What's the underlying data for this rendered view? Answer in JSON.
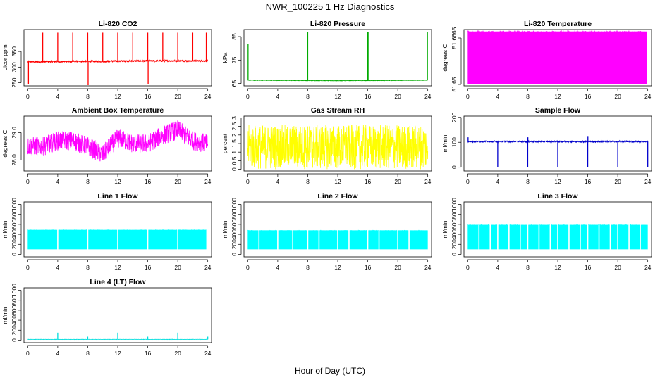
{
  "figure": {
    "title": "NWR_100225  1 Hz Diagnostics",
    "xlabel": "Hour of Day (UTC)"
  },
  "chart_data": [
    {
      "id": "co2",
      "type": "line",
      "title": "Li-820 CO2",
      "ylabel": "Licor ppm",
      "color": "#ff0000",
      "xlim": [
        -0.5,
        24.5
      ],
      "ylim": [
        240,
        420
      ],
      "xticks": [
        0,
        4,
        8,
        12,
        16,
        20,
        24
      ],
      "yticks": [
        250,
        300,
        350
      ],
      "yticks_rotated": true,
      "baseline": [
        [
          0,
          317
        ],
        [
          6,
          318
        ],
        [
          12,
          319
        ],
        [
          18,
          320
        ],
        [
          24,
          320
        ]
      ],
      "noise": 3,
      "spikes": [
        {
          "x": 0.1,
          "y": 245
        },
        {
          "x": 2.0,
          "y": 410
        },
        {
          "x": 4.0,
          "y": 410
        },
        {
          "x": 6.0,
          "y": 410
        },
        {
          "x": 8.0,
          "y": 410
        },
        {
          "x": 8.05,
          "y": 240
        },
        {
          "x": 10.0,
          "y": 410
        },
        {
          "x": 12.0,
          "y": 410
        },
        {
          "x": 14.0,
          "y": 410
        },
        {
          "x": 16.0,
          "y": 410
        },
        {
          "x": 16.05,
          "y": 245
        },
        {
          "x": 18.0,
          "y": 410
        },
        {
          "x": 20.0,
          "y": 410
        },
        {
          "x": 22.0,
          "y": 410
        },
        {
          "x": 23.8,
          "y": 410
        }
      ]
    },
    {
      "id": "pressure",
      "type": "line",
      "title": "Li-820 Pressure",
      "ylabel": "kPa",
      "color": "#00aa00",
      "xlim": [
        -0.5,
        24.5
      ],
      "ylim": [
        64,
        88
      ],
      "xticks": [
        0,
        4,
        8,
        12,
        16,
        20,
        24
      ],
      "yticks": [
        65,
        75,
        85
      ],
      "yticks_rotated": true,
      "baseline": [
        [
          0,
          66.4
        ],
        [
          12,
          66.2
        ],
        [
          24,
          66.4
        ]
      ],
      "noise": 0.1,
      "spikes": [
        {
          "x": 0.05,
          "y": 82
        },
        {
          "x": 8.0,
          "y": 87
        },
        {
          "x": 15.95,
          "y": 87
        },
        {
          "x": 16.05,
          "y": 87
        },
        {
          "x": 23.95,
          "y": 87
        }
      ]
    },
    {
      "id": "licor_temp",
      "type": "area",
      "title": "Li-820 Temperature",
      "ylabel": "degrees C",
      "color": "#ff00ff",
      "xlim": [
        -0.5,
        24.5
      ],
      "ylim": [
        51.6495,
        51.6695
      ],
      "xticks": [
        0,
        4,
        8,
        12,
        16,
        20,
        24
      ],
      "yticks": [
        51.65,
        51.6665
      ],
      "yticks_rotated": true,
      "band": [
        [
          0,
          51.6502,
          51.6688
        ],
        [
          23.9,
          51.6502,
          51.6688
        ]
      ]
    },
    {
      "id": "box_temp",
      "type": "line",
      "title": "Ambient Box Temperature",
      "ylabel": "degrees C",
      "color": "#ff00ff",
      "xlim": [
        -0.5,
        24.5
      ],
      "ylim": [
        27.6,
        29.6
      ],
      "xticks": [
        0,
        4,
        8,
        12,
        16,
        20,
        24
      ],
      "yticks": [
        28.0,
        29.0
      ],
      "yticks_rotated": true,
      "baseline": [
        [
          0,
          28.5
        ],
        [
          2,
          28.5
        ],
        [
          4,
          28.7
        ],
        [
          6,
          28.7
        ],
        [
          8,
          28.5
        ],
        [
          10,
          28.2
        ],
        [
          12,
          28.8
        ],
        [
          14,
          28.6
        ],
        [
          16,
          28.6
        ],
        [
          18,
          28.9
        ],
        [
          20,
          29.1
        ],
        [
          22,
          28.7
        ],
        [
          24,
          28.6
        ]
      ],
      "noise": 0.35
    },
    {
      "id": "rh",
      "type": "line",
      "title": "Gas Stream RH",
      "ylabel": "percent",
      "color": "#ffff00",
      "xlim": [
        -0.5,
        24.5
      ],
      "ylim": [
        -0.1,
        3.1
      ],
      "xticks": [
        0,
        4,
        8,
        12,
        16,
        20,
        24
      ],
      "yticks": [
        0.0,
        0.5,
        1.0,
        1.5,
        2.0,
        2.5,
        3.0
      ],
      "yticks_rotated": true,
      "baseline": [
        [
          0,
          1.3
        ],
        [
          24,
          1.3
        ]
      ],
      "noise": 1.3
    },
    {
      "id": "sample_flow",
      "type": "line",
      "title": "Sample Flow",
      "ylabel": "ml/min",
      "color": "#0000cc",
      "xlim": [
        -0.5,
        24.5
      ],
      "ylim": [
        -15,
        205
      ],
      "xticks": [
        0,
        4,
        8,
        12,
        16,
        20,
        24
      ],
      "yticks": [
        0,
        100,
        200
      ],
      "yticks_rotated": true,
      "baseline": [
        [
          0,
          103
        ],
        [
          24,
          103
        ]
      ],
      "noise": 3,
      "spikes": [
        {
          "x": 0.05,
          "y": 120
        },
        {
          "x": 4.0,
          "y": 0
        },
        {
          "x": 8.0,
          "y": 0
        },
        {
          "x": 8.02,
          "y": 120
        },
        {
          "x": 12.0,
          "y": 0
        },
        {
          "x": 16.0,
          "y": 0
        },
        {
          "x": 16.02,
          "y": 125
        },
        {
          "x": 20.0,
          "y": 0
        },
        {
          "x": 24.0,
          "y": 0
        }
      ]
    },
    {
      "id": "line1",
      "type": "area",
      "title": "Line 1 Flow",
      "ylabel": "ml/min",
      "color": "#00ffff",
      "xlim": [
        -0.5,
        24.5
      ],
      "ylim": [
        -50,
        1050
      ],
      "xticks": [
        0,
        4,
        8,
        12,
        16,
        20,
        24
      ],
      "yticks": [
        0,
        200,
        400,
        600,
        800,
        1000
      ],
      "yticks_rotated": true,
      "band": [
        [
          0,
          100,
          490
        ],
        [
          23.8,
          100,
          490
        ]
      ],
      "gaps": [
        4,
        8,
        12,
        16,
        20
      ]
    },
    {
      "id": "line2",
      "type": "area",
      "title": "Line 2 Flow",
      "ylabel": "ml/min",
      "color": "#00ffff",
      "xlim": [
        -0.5,
        24.5
      ],
      "ylim": [
        -50,
        1050
      ],
      "xticks": [
        0,
        4,
        8,
        12,
        16,
        20,
        24
      ],
      "yticks": [
        0,
        200,
        400,
        600,
        800,
        1000
      ],
      "yticks_rotated": true,
      "band": [
        [
          0,
          100,
          480
        ],
        [
          24,
          100,
          480
        ]
      ],
      "gaps": [
        1.5,
        4,
        6,
        8,
        9.5,
        12,
        13.5,
        16,
        17.5,
        20,
        21.5
      ]
    },
    {
      "id": "line3",
      "type": "area",
      "title": "Line 3 Flow",
      "ylabel": "ml/min",
      "color": "#00ffff",
      "xlim": [
        -0.5,
        24.5
      ],
      "ylim": [
        -50,
        1050
      ],
      "xticks": [
        0,
        4,
        8,
        12,
        16,
        20,
        24
      ],
      "yticks": [
        0,
        200,
        400,
        600,
        800,
        1000
      ],
      "yticks_rotated": true,
      "band": [
        [
          0,
          100,
          590
        ],
        [
          24,
          100,
          590
        ]
      ],
      "gaps": [
        1.5,
        3,
        4,
        5.5,
        7,
        8,
        9.5,
        11,
        12,
        13.5,
        15,
        16,
        17.5,
        19,
        20,
        21.5,
        23
      ]
    },
    {
      "id": "line4",
      "type": "line",
      "title": "Line 4 (LT) Flow",
      "ylabel": "ml/min",
      "color": "#00dddd",
      "xlim": [
        -0.5,
        24.5
      ],
      "ylim": [
        -50,
        1050
      ],
      "xticks": [
        0,
        4,
        8,
        12,
        16,
        20,
        24
      ],
      "yticks": [
        0,
        200,
        400,
        600,
        800,
        1000
      ],
      "yticks_rotated": true,
      "baseline": [
        [
          0,
          15
        ],
        [
          24,
          15
        ]
      ],
      "noise": 3,
      "spikes": [
        {
          "x": 4.0,
          "y": 150
        },
        {
          "x": 8.0,
          "y": 70
        },
        {
          "x": 12.0,
          "y": 150
        },
        {
          "x": 16.0,
          "y": 70
        },
        {
          "x": 20.0,
          "y": 150
        },
        {
          "x": 24.0,
          "y": 70
        }
      ]
    }
  ]
}
